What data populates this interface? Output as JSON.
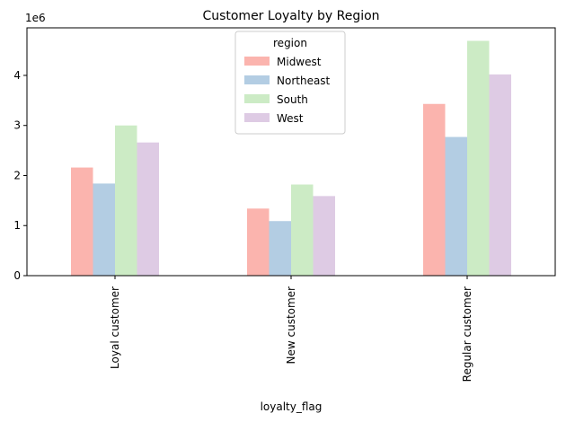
{
  "chart_data": {
    "type": "bar",
    "title": "Customer Loyalty by Region",
    "xlabel": "loyalty_flag",
    "ylabel": "",
    "y_scale_label": "1e6",
    "ylim": [
      0,
      4.95
    ],
    "y_ticks": [
      0,
      1,
      2,
      3,
      4
    ],
    "categories": [
      "Loyal customer",
      "New customer",
      "Regular customer"
    ],
    "legend": {
      "title": "region",
      "position": "upper-center"
    },
    "series": [
      {
        "name": "Midwest",
        "color": "#fbb4ae",
        "values": [
          2.16,
          1.34,
          3.43
        ]
      },
      {
        "name": "Northeast",
        "color": "#b3cde3",
        "values": [
          1.84,
          1.09,
          2.77
        ]
      },
      {
        "name": "South",
        "color": "#ccebc5",
        "values": [
          3.0,
          1.82,
          4.69
        ]
      },
      {
        "name": "West",
        "color": "#decbe4",
        "values": [
          2.66,
          1.59,
          4.02
        ]
      }
    ]
  }
}
